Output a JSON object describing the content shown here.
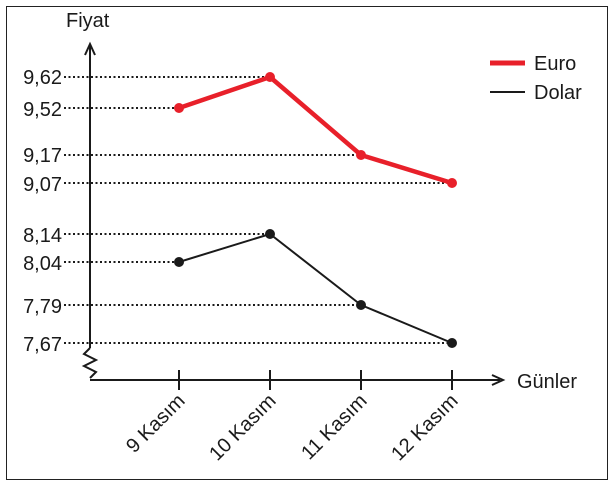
{
  "chart_data": {
    "type": "line",
    "ylabel": "Fiyat",
    "xlabel": "Günler",
    "categories": [
      "9 Kasım",
      "10 Kasım",
      "11 Kasım",
      "12 Kasım"
    ],
    "y_ticks": [
      "9,62",
      "9,52",
      "9,17",
      "9,07",
      "8,14",
      "8,04",
      "7,79",
      "7,67"
    ],
    "axis_break": true,
    "grid": false,
    "legend_position": "top-right",
    "series": [
      {
        "name": "Euro",
        "values": [
          9.52,
          9.62,
          9.17,
          9.07
        ],
        "labels": [
          "9,52",
          "9,62",
          "9,17",
          "9,07"
        ],
        "color": "#e8202a"
      },
      {
        "name": "Dolar",
        "values": [
          8.04,
          8.14,
          7.79,
          7.67
        ],
        "labels": [
          "8,04",
          "8,14",
          "7,79",
          "7,67"
        ],
        "color": "#1a1a1a"
      }
    ]
  }
}
